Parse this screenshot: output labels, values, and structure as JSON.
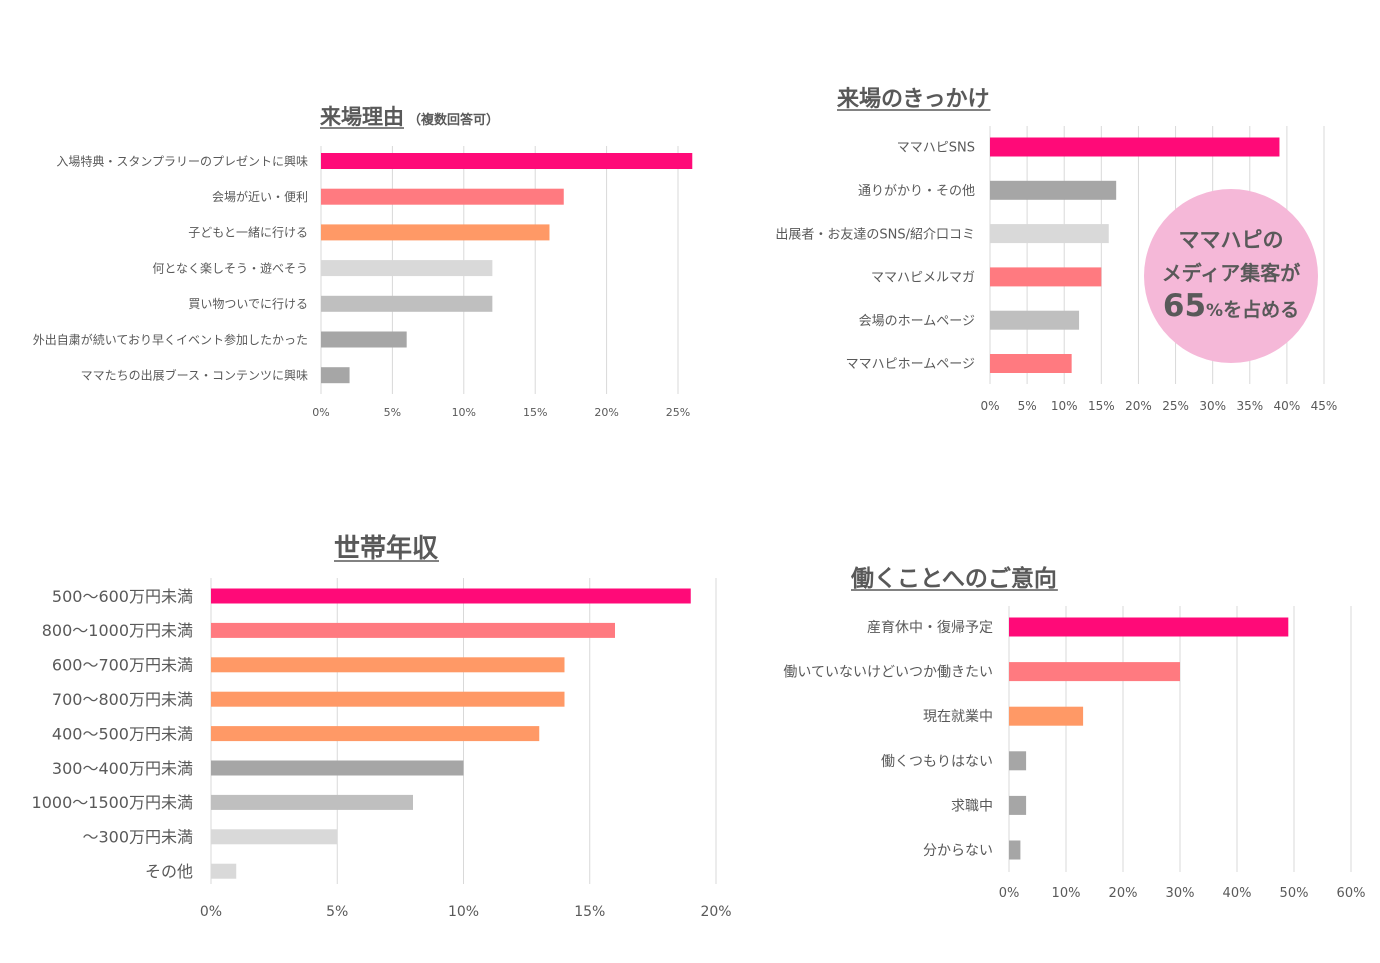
{
  "chart_data": [
    {
      "type": "bar",
      "orientation": "horizontal",
      "title": "来場理由",
      "subtitle": "（複数回答可）",
      "categories": [
        "入場特典・スタンプラリーのプレゼントに興味",
        "会場が近い・便利",
        "子どもと一緒に行ける",
        "何となく楽しそう・遊べそう",
        "買い物ついでに行ける",
        "外出自粛が続いており早くイベント参加したかった",
        "ママたちの出展ブース・コンテンツに興味"
      ],
      "values": [
        26,
        17,
        16,
        12,
        12,
        6,
        2
      ],
      "colors": [
        "#ff0a78",
        "#ff7a80",
        "#ff9966",
        "#d9d9d9",
        "#bfbfbf",
        "#a6a6a6",
        "#a6a6a6"
      ],
      "x_ticks": [
        "0%",
        "5%",
        "10%",
        "15%",
        "20%",
        "25%"
      ],
      "xlim": [
        0,
        25
      ],
      "unit": "%",
      "grid": true
    },
    {
      "type": "bar",
      "orientation": "horizontal",
      "title": "来場のきっかけ",
      "categories": [
        "ママハピSNS",
        "通りがかり・その他",
        "出展者・お友達のSNS/紹介口コミ",
        "ママハピメルマガ",
        "会場のホームページ",
        "ママハピホームページ"
      ],
      "values": [
        39,
        17,
        16,
        15,
        12,
        11
      ],
      "colors": [
        "#ff0a78",
        "#a6a6a6",
        "#d9d9d9",
        "#ff7a80",
        "#bfbfbf",
        "#ff7a80"
      ],
      "x_ticks": [
        "0%",
        "5%",
        "10%",
        "15%",
        "20%",
        "25%",
        "30%",
        "35%",
        "40%",
        "45%"
      ],
      "xlim": [
        0,
        45
      ],
      "unit": "%",
      "grid": true,
      "badge": {
        "lines": [
          "ママハピの",
          "メディア集客が"
        ],
        "big": "65",
        "pct": "%",
        "tail": "を占める",
        "color": "#f5b8d8"
      }
    },
    {
      "type": "bar",
      "orientation": "horizontal",
      "title": "世帯年収",
      "categories": [
        "500〜600万円未満",
        "800〜1000万円未満",
        "600〜700万円未満",
        "700〜800万円未満",
        "400〜500万円未満",
        "300〜400万円未満",
        "1000〜1500万円未満",
        "〜300万円未満",
        "その他"
      ],
      "values": [
        19,
        16,
        14,
        14,
        13,
        10,
        8,
        5,
        1
      ],
      "colors": [
        "#ff0a78",
        "#ff7a80",
        "#ff9966",
        "#ff9966",
        "#ff9966",
        "#a6a6a6",
        "#bfbfbf",
        "#d9d9d9",
        "#d9d9d9"
      ],
      "x_ticks": [
        "0%",
        "5%",
        "10%",
        "15%",
        "20%"
      ],
      "xlim": [
        0,
        20
      ],
      "unit": "%",
      "grid": true
    },
    {
      "type": "bar",
      "orientation": "horizontal",
      "title": "働くことへのご意向",
      "categories": [
        "産育休中・復帰予定",
        "働いていないけどいつか働きたい",
        "現在就業中",
        "働くつもりはない",
        "求職中",
        "分からない"
      ],
      "values": [
        49,
        30,
        13,
        3,
        3,
        2
      ],
      "colors": [
        "#ff0a78",
        "#ff7a80",
        "#ff9966",
        "#a6a6a6",
        "#a6a6a6",
        "#a6a6a6"
      ],
      "x_ticks": [
        "0%",
        "10%",
        "20%",
        "30%",
        "40%",
        "50%",
        "60%"
      ],
      "xlim": [
        0,
        60
      ],
      "unit": "%",
      "grid": true
    }
  ]
}
